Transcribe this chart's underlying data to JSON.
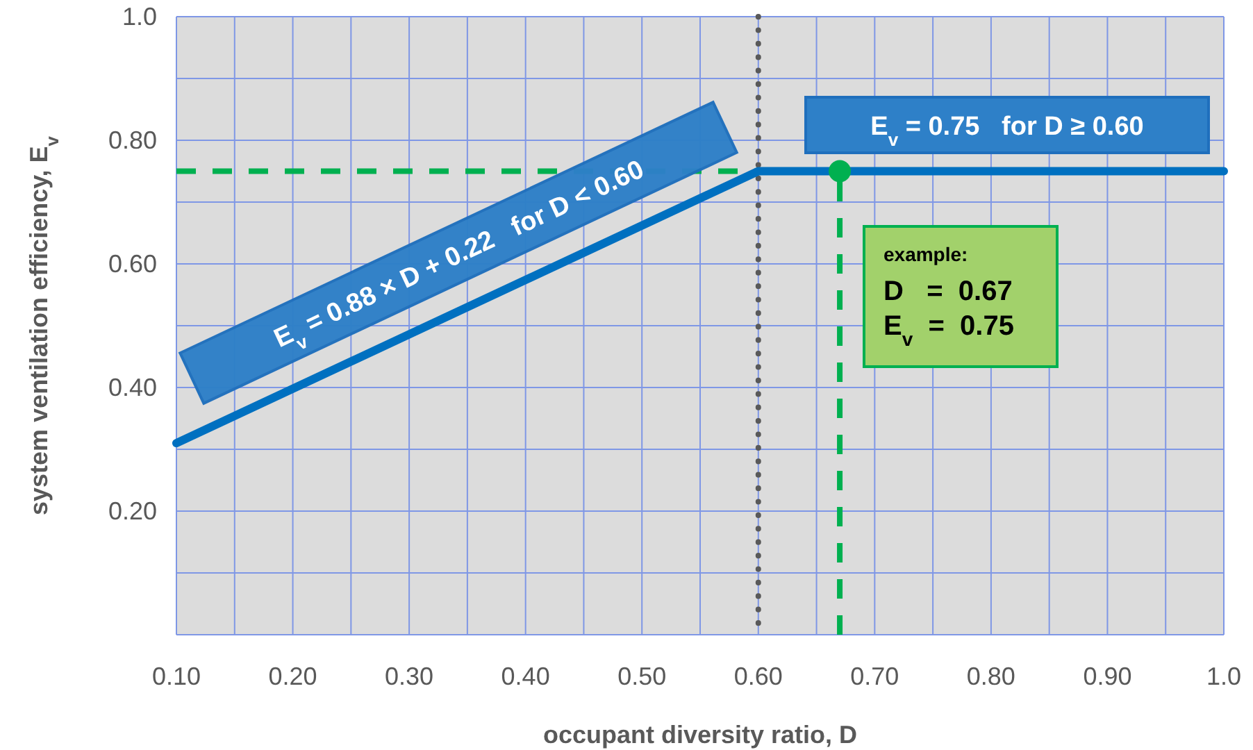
{
  "chart_data": {
    "type": "line",
    "xlabel": "occupant diversity ratio, D",
    "ylabel": "system ventilation efficiency, E$_{v}$",
    "xlim": [
      0.1,
      1.0
    ],
    "ylim": [
      0,
      1.0
    ],
    "xticks": [
      {
        "value": 0.1,
        "label": "0.10"
      },
      {
        "value": 0.15,
        "label": null
      },
      {
        "value": 0.2,
        "label": "0.20"
      },
      {
        "value": 0.25,
        "label": null
      },
      {
        "value": 0.3,
        "label": "0.30"
      },
      {
        "value": 0.35,
        "label": null
      },
      {
        "value": 0.4,
        "label": "0.40"
      },
      {
        "value": 0.45,
        "label": null
      },
      {
        "value": 0.5,
        "label": "0.50"
      },
      {
        "value": 0.55,
        "label": null
      },
      {
        "value": 0.6,
        "label": "0.60"
      },
      {
        "value": 0.65,
        "label": null
      },
      {
        "value": 0.7,
        "label": "0.70"
      },
      {
        "value": 0.75,
        "label": null
      },
      {
        "value": 0.8,
        "label": "0.80"
      },
      {
        "value": 0.85,
        "label": null
      },
      {
        "value": 0.9,
        "label": "0.90"
      },
      {
        "value": 0.95,
        "label": null
      },
      {
        "value": 1.0,
        "label": "1.0"
      }
    ],
    "yticks": [
      {
        "value": 0,
        "label": null
      },
      {
        "value": 0.1,
        "label": null
      },
      {
        "value": 0.2,
        "label": "0.20"
      },
      {
        "value": 0.3,
        "label": null
      },
      {
        "value": 0.4,
        "label": "0.40"
      },
      {
        "value": 0.5,
        "label": null
      },
      {
        "value": 0.6,
        "label": "0.60"
      },
      {
        "value": 0.7,
        "label": null
      },
      {
        "value": 0.8,
        "label": "0.80"
      },
      {
        "value": 0.9,
        "label": null
      },
      {
        "value": 1.0,
        "label": "1.0"
      }
    ],
    "grid": true,
    "series": [
      {
        "color": "#00b050",
        "line_style": "dashed",
        "x": [
          0.1,
          0.67
        ],
        "values": [
          0.75,
          0.75
        ]
      },
      {
        "color": "#00b050",
        "line_style": "dashed",
        "x": [
          0.67,
          0.67
        ],
        "values": [
          0,
          0.75
        ]
      },
      {
        "color": "#0070c0",
        "line_style": "solid",
        "x": [
          0.1,
          0.6,
          1.0
        ],
        "values": [
          0.31,
          0.75,
          0.75
        ]
      },
      {
        "type": "scatter",
        "color": "#00b050",
        "marker": "circle",
        "x": [
          0.67
        ],
        "values": [
          0.75
        ]
      }
    ],
    "ref_lines": [
      {
        "axis": "x",
        "value": 0.6,
        "color": "#595959",
        "line_style": "dotted"
      }
    ],
    "annotations": [
      "E$_{v}$ = 0.88 × D + 0.22   for D < 0.60",
      "E$_{v}$ = 0.75   for D ≥ 0.60",
      "example:\nD   =  0.67\nE$_{v}$  =  0.75"
    ]
  }
}
